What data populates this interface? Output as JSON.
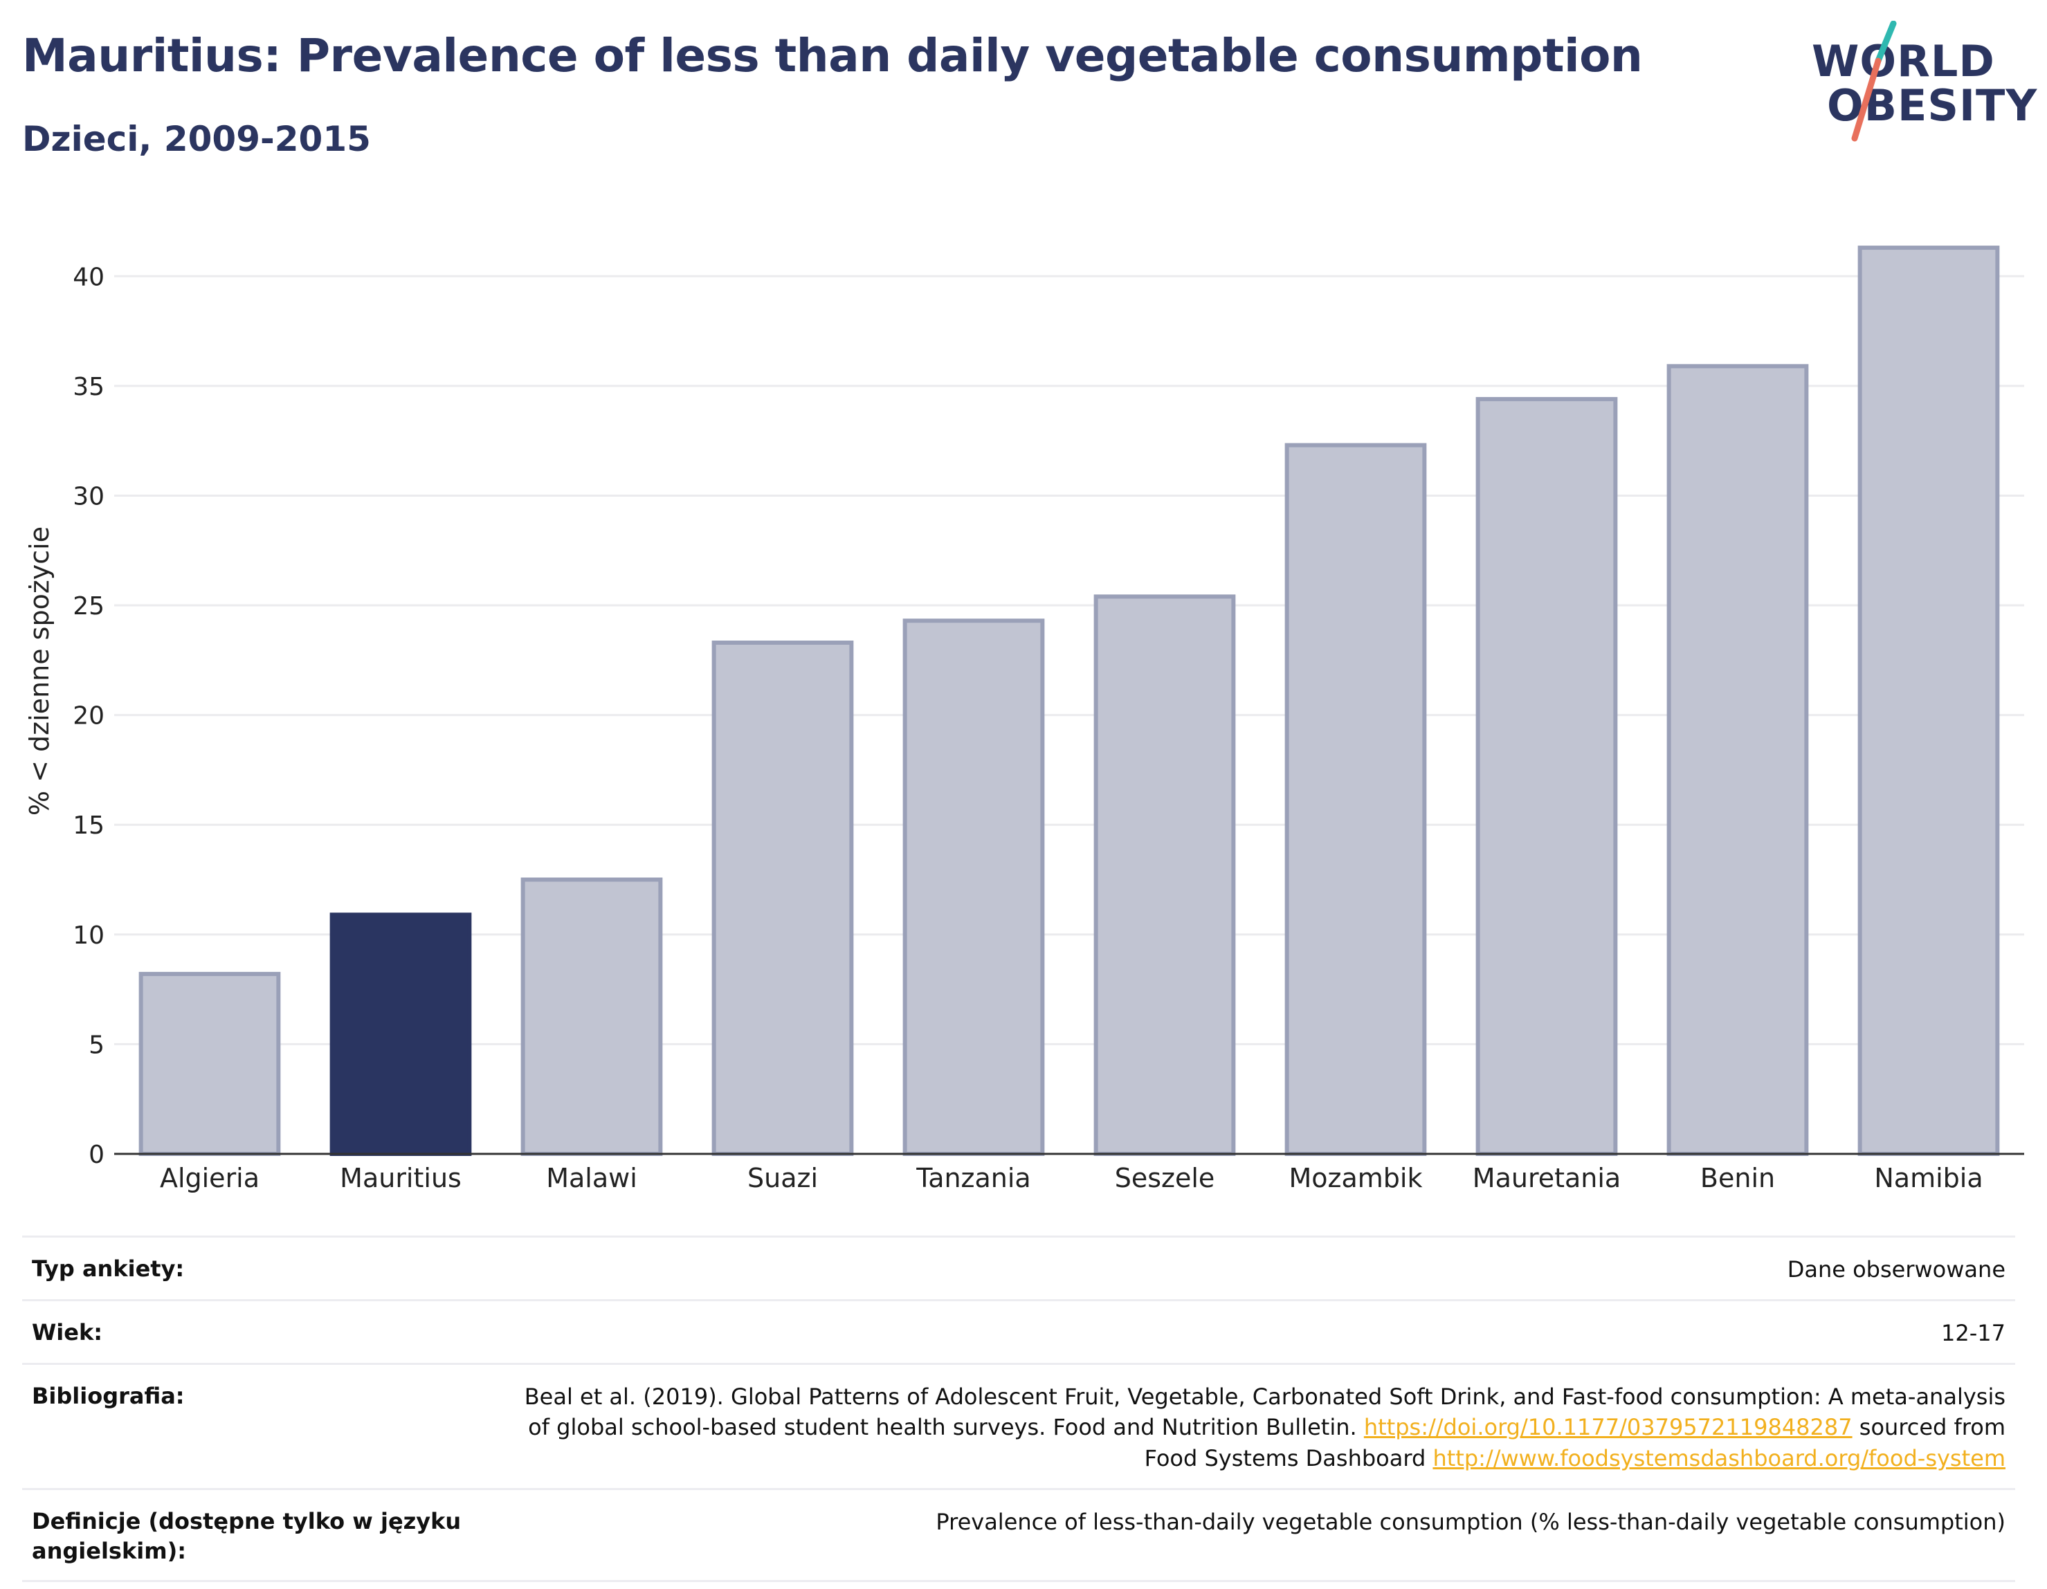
{
  "header": {
    "title": "Mauritius: Prevalence of less than daily vegetable consumption",
    "subtitle": "Dzieci, 2009-2015"
  },
  "logo": {
    "line1": "WORLD",
    "line2": "OBESITY",
    "accent_colors": [
      "#2fb8b0",
      "#e8705c"
    ],
    "text_color": "#2b3560"
  },
  "chart_data": {
    "type": "bar",
    "title": "Mauritius: Prevalence of less than daily vegetable consumption",
    "subtitle": "Dzieci, 2009-2015",
    "xlabel": "",
    "ylabel": "% < dzienne spożycie",
    "ylim": [
      0,
      42.5
    ],
    "yticks": [
      0,
      5,
      10,
      15,
      20,
      25,
      30,
      35,
      40
    ],
    "grid": true,
    "categories": [
      "Algieria",
      "Mauritius",
      "Malawi",
      "Suazi",
      "Tanzania",
      "Seszele",
      "Mozambik",
      "Mauretania",
      "Benin",
      "Namibia"
    ],
    "values": [
      8.2,
      10.9,
      12.5,
      23.3,
      24.3,
      25.4,
      32.3,
      34.4,
      35.9,
      41.3
    ],
    "highlight": "Mauritius",
    "colors": {
      "bar": "#c1c4d2",
      "bar_stroke": "#9aa0b8",
      "highlight": "#2a3561",
      "grid": "#ebebee",
      "axis": "#333333"
    }
  },
  "info": {
    "survey_type_label": "Typ ankiety:",
    "survey_type_value": "Dane obserwowane",
    "age_label": "Wiek:",
    "age_value": "12-17",
    "bibliography_label": "Bibliografia:",
    "bibliography_text_1": "Beal et al. (2019). Global Patterns of Adolescent Fruit, Vegetable, Carbonated Soft Drink, and Fast-food consumption: A meta-analysis of global school-based student health surveys. Food and Nutrition Bulletin.",
    "bibliography_link_1": "https://doi.org/10.1177/0379572119848287",
    "bibliography_text_2": "sourced from Food Systems Dashboard",
    "bibliography_link_2": "http://www.foodsystemsdashboard.org/food-system",
    "definitions_label": "Definicje (dostępne tylko w języku angielskim):",
    "definitions_value": "Prevalence of less-than-daily vegetable consumption (% less-than-daily vegetable consumption)"
  }
}
